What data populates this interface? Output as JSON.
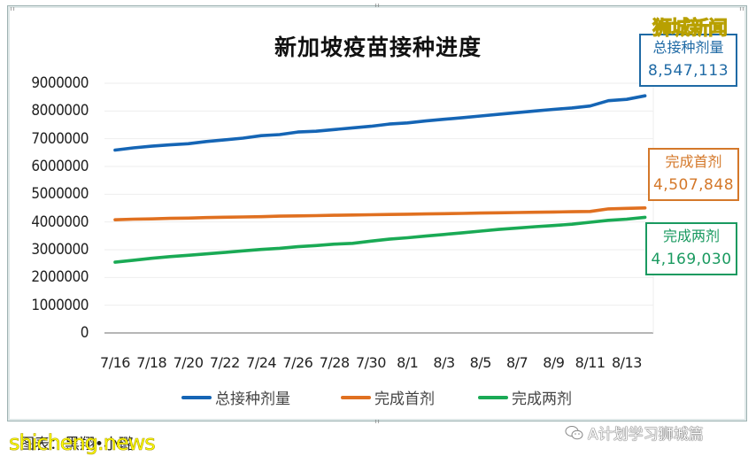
{
  "chart_data": {
    "type": "line",
    "title": "新加坡疫苗接种进度",
    "xlabel": "",
    "ylabel": "",
    "ylim": [
      0,
      9000000
    ],
    "yticks": [
      0,
      1000000,
      2000000,
      3000000,
      4000000,
      5000000,
      6000000,
      7000000,
      8000000,
      9000000
    ],
    "ytick_labels": [
      "0",
      "1000000",
      "2000000",
      "3000000",
      "4000000",
      "5000000",
      "6000000",
      "7000000",
      "8000000",
      "9000000"
    ],
    "xtick_labels": [
      "7/16",
      "7/18",
      "7/20",
      "7/22",
      "7/24",
      "7/26",
      "7/28",
      "7/30",
      "8/1",
      "8/3",
      "8/5",
      "8/7",
      "8/9",
      "8/11",
      "8/13"
    ],
    "grid": true,
    "legend_position": "bottom",
    "x": [
      "7/16",
      "7/17",
      "7/18",
      "7/19",
      "7/20",
      "7/21",
      "7/22",
      "7/23",
      "7/24",
      "7/25",
      "7/26",
      "7/27",
      "7/28",
      "7/29",
      "7/30",
      "7/31",
      "8/1",
      "8/2",
      "8/3",
      "8/4",
      "8/5",
      "8/6",
      "8/7",
      "8/8",
      "8/9",
      "8/10",
      "8/11",
      "8/12",
      "8/13",
      "8/14"
    ],
    "series": [
      {
        "name": "总接种剂量",
        "color": "#1565b5",
        "values": [
          6590000,
          6670000,
          6730000,
          6780000,
          6820000,
          6900000,
          6960000,
          7020000,
          7110000,
          7150000,
          7240000,
          7270000,
          7330000,
          7390000,
          7450000,
          7530000,
          7570000,
          7640000,
          7700000,
          7760000,
          7820000,
          7880000,
          7940000,
          8000000,
          8060000,
          8110000,
          8180000,
          8370000,
          8420000,
          8547113
        ]
      },
      {
        "name": "完成首剂",
        "color": "#e07020",
        "values": [
          4080000,
          4100000,
          4110000,
          4130000,
          4140000,
          4160000,
          4170000,
          4180000,
          4190000,
          4210000,
          4220000,
          4230000,
          4240000,
          4250000,
          4260000,
          4270000,
          4280000,
          4290000,
          4300000,
          4310000,
          4320000,
          4330000,
          4340000,
          4350000,
          4360000,
          4370000,
          4380000,
          4470000,
          4490000,
          4507848
        ]
      },
      {
        "name": "完成两剂",
        "color": "#1aaa55",
        "values": [
          2550000,
          2620000,
          2690000,
          2750000,
          2800000,
          2850000,
          2900000,
          2960000,
          3010000,
          3050000,
          3110000,
          3150000,
          3200000,
          3230000,
          3310000,
          3380000,
          3430000,
          3490000,
          3550000,
          3610000,
          3670000,
          3730000,
          3780000,
          3830000,
          3870000,
          3920000,
          3990000,
          4060000,
          4100000,
          4169030
        ]
      }
    ],
    "annotations": [
      {
        "label": "总接种剂量",
        "value": "8,547,113",
        "color": "#1f6aa5"
      },
      {
        "label": "完成首剂",
        "value": "4,507,848",
        "color": "#d4782a"
      },
      {
        "label": "完成两剂",
        "value": "4,169,030",
        "color": "#1a9a60"
      }
    ]
  },
  "chart": {
    "title": "新加坡疫苗接种进度",
    "legend": [
      {
        "label": "总接种剂量",
        "color": "#1565b5"
      },
      {
        "label": "完成首剂",
        "color": "#e07020"
      },
      {
        "label": "完成两剂",
        "color": "#1aaa55"
      }
    ]
  },
  "callouts": {
    "total": {
      "label": "总接种剂量",
      "value": "8,547,113"
    },
    "first": {
      "label": "完成首剂",
      "value": "4,507,848"
    },
    "second": {
      "label": "完成两剂",
      "value": "4,169,030"
    }
  },
  "caption": "图表：黑翔•小璐",
  "watermarks": {
    "top_right": "狮城新闻",
    "bottom_left": "shicheng.news",
    "bottom_right": "A计划学习狮城篇"
  }
}
